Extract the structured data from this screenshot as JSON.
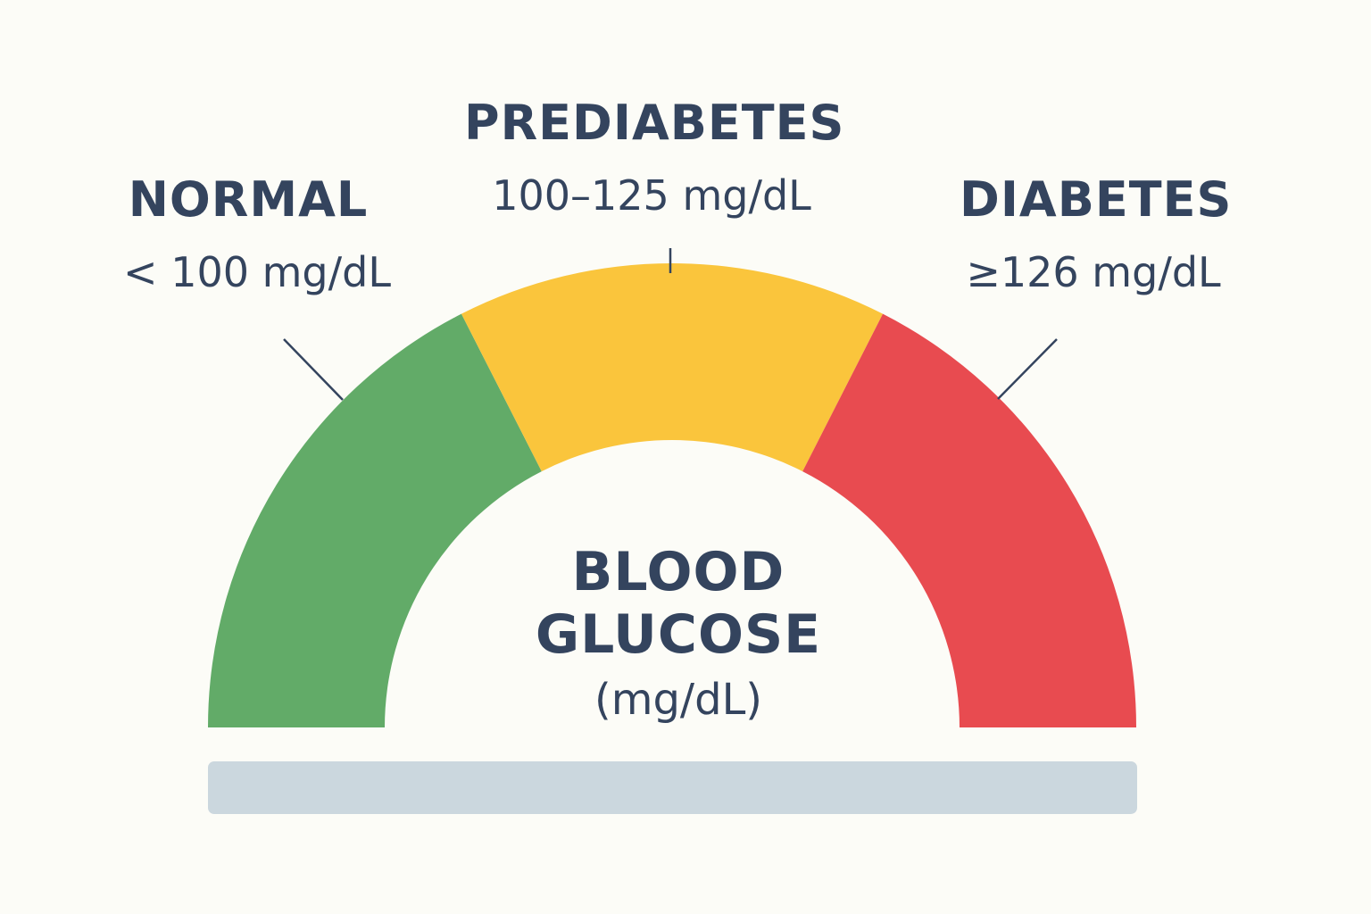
{
  "categories": [
    {
      "name": "NORMAL",
      "range": "< 100 mg/dL",
      "color": "#62ab68"
    },
    {
      "name": "PREDIABETES",
      "range": "100–125 mg/dL",
      "color": "#fac53c"
    },
    {
      "name": "DIABETES",
      "range": "≥126 mg/dL",
      "color": "#e84b50"
    }
  ],
  "center": {
    "title_line1": "BLOOD",
    "title_line2": "GLUCOSE",
    "unit": "(mg/dL)"
  },
  "colors": {
    "text": "#34445e",
    "base_bar": "#cbd7de",
    "background": "#fcfcf7"
  }
}
